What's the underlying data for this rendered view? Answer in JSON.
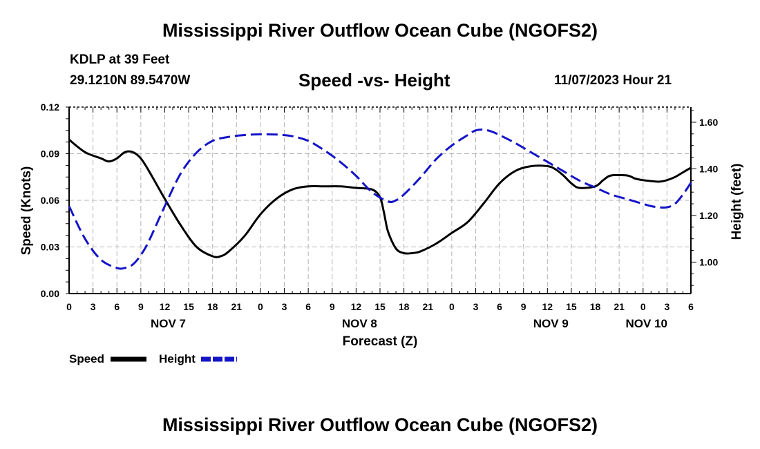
{
  "page": {
    "title": "Mississippi River Outflow Ocean Cube (NGOFS2)",
    "station": "KDLP at 39 Feet",
    "coords": "29.1210N  89.5470W",
    "subtitle": "Speed -vs- Height",
    "datetime": "11/07/2023 Hour 21",
    "footer_title": "Mississippi River Outflow Ocean Cube (NGOFS2)"
  },
  "colors": {
    "speed": "#000000",
    "height": "#1414c8",
    "grid": "#b4b4b4"
  },
  "chart_data": {
    "type": "line",
    "title": "Speed -vs- Height",
    "xlabel": "Forecast (Z)",
    "ylabel": "Speed (Knots)",
    "y2label": "Height (feet)",
    "x_units": "hours since NOV 7 00Z",
    "xlim": [
      0,
      78
    ],
    "ylim": [
      0,
      0.12
    ],
    "y2lim": [
      0.865,
      1.665
    ],
    "x_ticks": [
      0,
      3,
      6,
      9,
      12,
      15,
      18,
      21,
      24,
      27,
      30,
      33,
      36,
      39,
      42,
      45,
      48,
      51,
      54,
      57,
      60,
      63,
      66,
      69,
      72,
      75,
      78
    ],
    "x_tick_labels": [
      "0",
      "3",
      "6",
      "9",
      "12",
      "15",
      "18",
      "21",
      "0",
      "3",
      "6",
      "9",
      "12",
      "15",
      "18",
      "21",
      "0",
      "3",
      "6",
      "9",
      "12",
      "15",
      "18",
      "21",
      "0",
      "3",
      "6"
    ],
    "y_ticks": [
      "0.00",
      "0.03",
      "0.06",
      "0.09",
      "0.12"
    ],
    "y_tick_values": [
      0,
      0.03,
      0.06,
      0.09,
      0.12
    ],
    "y2_ticks": [
      "1.00",
      "1.20",
      "1.40",
      "1.60"
    ],
    "y2_tick_values": [
      1.0,
      1.2,
      1.4,
      1.6
    ],
    "date_labels": [
      {
        "text": "NOV 7",
        "x": 12
      },
      {
        "text": "NOV 8",
        "x": 36
      },
      {
        "text": "NOV 9",
        "x": 60
      },
      {
        "text": "NOV 10",
        "x": 72
      }
    ],
    "grid": true,
    "legend_position": "bottom-left",
    "series": [
      {
        "name": "Speed",
        "axis": "left",
        "style": "solid",
        "x": [
          0,
          2,
          4,
          5,
          6,
          7,
          8,
          9,
          10,
          12,
          14,
          16,
          18,
          19,
          20,
          22,
          24,
          26,
          28,
          30,
          32,
          34,
          36,
          38,
          39,
          39.5,
          40,
          41,
          42,
          43,
          44,
          46,
          48,
          50,
          52,
          54,
          56,
          58,
          60,
          61,
          62,
          63,
          64,
          66,
          67,
          68,
          70,
          71,
          72,
          74,
          75,
          76,
          77,
          78
        ],
        "values": [
          0.099,
          0.091,
          0.087,
          0.085,
          0.087,
          0.091,
          0.091,
          0.087,
          0.079,
          0.061,
          0.044,
          0.03,
          0.024,
          0.024,
          0.027,
          0.037,
          0.051,
          0.061,
          0.067,
          0.069,
          0.069,
          0.069,
          0.068,
          0.067,
          0.062,
          0.052,
          0.04,
          0.029,
          0.026,
          0.026,
          0.027,
          0.032,
          0.039,
          0.046,
          0.058,
          0.071,
          0.079,
          0.082,
          0.082,
          0.08,
          0.076,
          0.071,
          0.068,
          0.069,
          0.073,
          0.076,
          0.076,
          0.074,
          0.073,
          0.072,
          0.073,
          0.075,
          0.078,
          0.081
        ]
      },
      {
        "name": "Height",
        "axis": "right",
        "style": "dashed",
        "x": [
          0,
          2,
          4,
          6,
          7,
          8,
          9,
          10,
          12,
          14,
          16,
          18,
          20,
          22,
          24,
          26,
          28,
          30,
          32,
          34,
          36,
          38,
          40,
          41,
          42,
          44,
          46,
          48,
          50,
          51,
          52,
          53,
          54,
          56,
          58,
          60,
          62,
          64,
          66,
          68,
          70,
          72,
          73,
          74,
          75,
          76,
          77,
          78
        ],
        "values": [
          1.24,
          1.1,
          1.01,
          0.975,
          0.975,
          0.99,
          1.03,
          1.09,
          1.24,
          1.38,
          1.47,
          1.52,
          1.537,
          1.545,
          1.548,
          1.547,
          1.54,
          1.52,
          1.48,
          1.43,
          1.37,
          1.3,
          1.26,
          1.265,
          1.29,
          1.36,
          1.44,
          1.5,
          1.545,
          1.565,
          1.568,
          1.56,
          1.545,
          1.51,
          1.47,
          1.43,
          1.39,
          1.35,
          1.32,
          1.29,
          1.27,
          1.25,
          1.24,
          1.235,
          1.235,
          1.25,
          1.29,
          1.34
        ]
      }
    ]
  }
}
